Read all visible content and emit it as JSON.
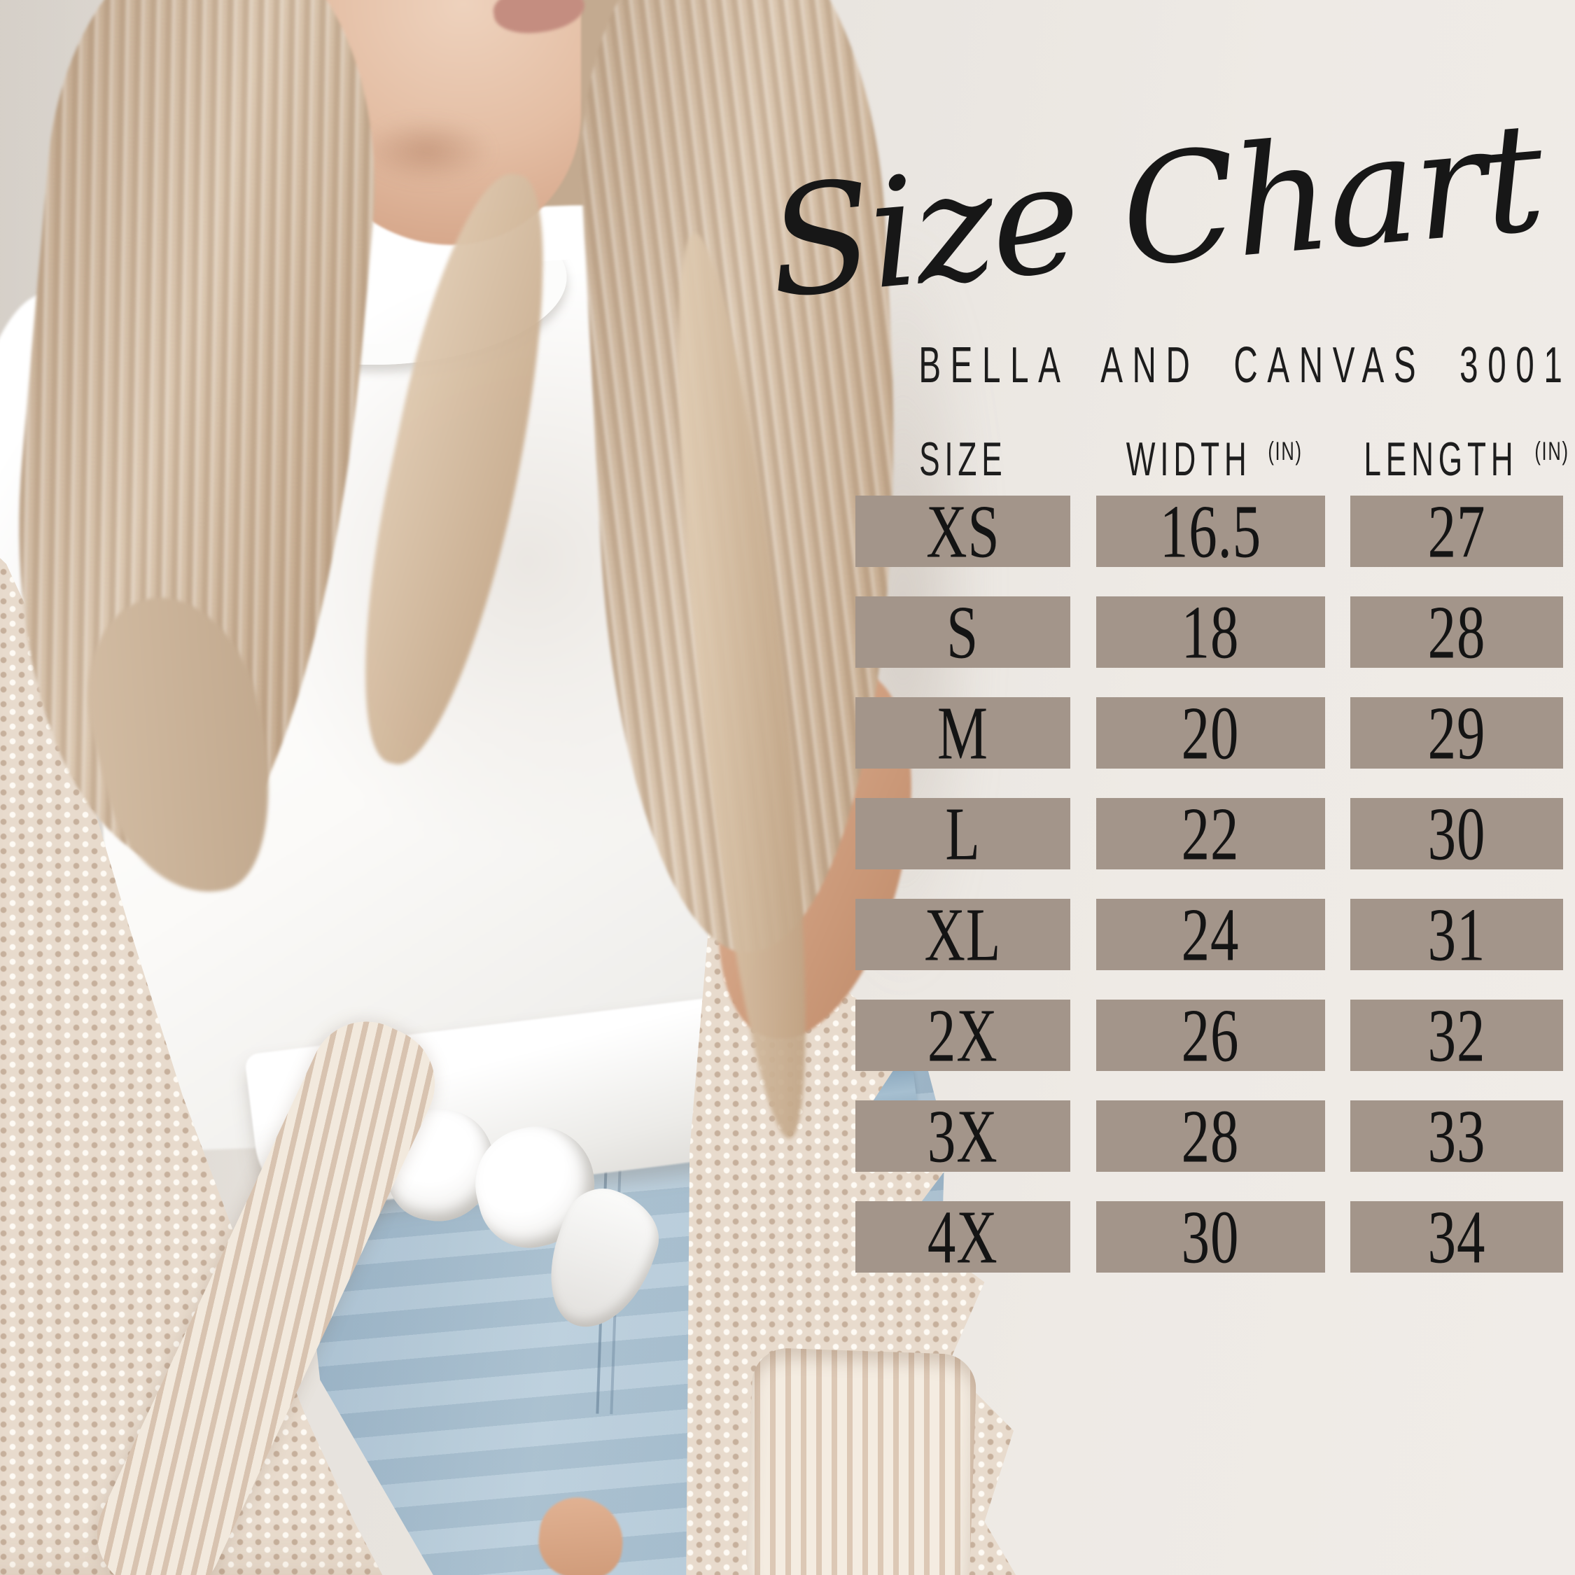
{
  "header": {
    "title": "Size Chart",
    "subtitle": "BELLA AND CANVAS 3001"
  },
  "table": {
    "headers": [
      {
        "label": "SIZE",
        "unit": ""
      },
      {
        "label": "WIDTH",
        "unit": "(IN)"
      },
      {
        "label": "LENGTH",
        "unit": "(IN)"
      }
    ],
    "rows": [
      [
        "XS",
        "16.5",
        "27"
      ],
      [
        "S",
        "18",
        "28"
      ],
      [
        "M",
        "20",
        "29"
      ],
      [
        "L",
        "22",
        "30"
      ],
      [
        "XL",
        "24",
        "31"
      ],
      [
        "2X",
        "26",
        "32"
      ],
      [
        "3X",
        "28",
        "33"
      ],
      [
        "4X",
        "30",
        "34"
      ]
    ]
  },
  "chart_data": {
    "type": "table",
    "title": "Size Chart",
    "subtitle": "BELLA AND CANVAS 3001",
    "product": "Bella and Canvas 3001",
    "columns": [
      "SIZE",
      "WIDTH (IN)",
      "LENGTH (IN)"
    ],
    "rows": [
      {
        "size": "XS",
        "width_in": 16.5,
        "length_in": 27
      },
      {
        "size": "S",
        "width_in": 18,
        "length_in": 28
      },
      {
        "size": "M",
        "width_in": 20,
        "length_in": 29
      },
      {
        "size": "L",
        "width_in": 22,
        "length_in": 30
      },
      {
        "size": "XL",
        "width_in": 24,
        "length_in": 31
      },
      {
        "size": "2X",
        "width_in": 26,
        "length_in": 32
      },
      {
        "size": "3X",
        "width_in": 28,
        "length_in": 33
      },
      {
        "size": "4X",
        "width_in": 30,
        "length_in": 34
      }
    ]
  },
  "colors": {
    "cell_background": "#a3958a",
    "wall": "#edeae5",
    "ink": "#161616",
    "jeans": "#a9c0d2",
    "cardigan": "#e9dccf",
    "hair": "#c8b098",
    "skin": "#d9ab8d",
    "tshirt": "#fbfafa"
  }
}
